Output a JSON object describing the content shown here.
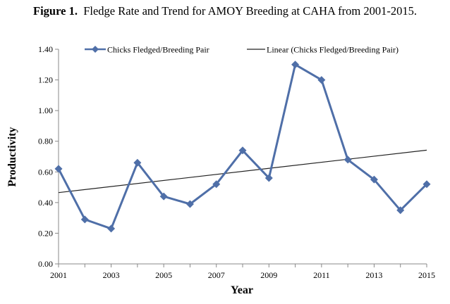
{
  "figure": {
    "label": "Figure 1.",
    "caption": "Fledge Rate and Trend for AMOY Breeding at CAHA from 2001-2015."
  },
  "chart_data": {
    "type": "line",
    "x": [
      2001,
      2002,
      2003,
      2004,
      2005,
      2006,
      2007,
      2008,
      2009,
      2010,
      2011,
      2012,
      2013,
      2014,
      2015
    ],
    "series": [
      {
        "name": "Chicks Fledged/Breeding Pair",
        "values": [
          0.62,
          0.29,
          0.23,
          0.66,
          0.44,
          0.39,
          0.52,
          0.74,
          0.56,
          1.3,
          1.2,
          0.68,
          0.55,
          0.35,
          0.52
        ],
        "color": "#4f6fa8",
        "marker": "diamond"
      },
      {
        "name": "Linear (Chicks Fledged/Breeding Pair)",
        "trend": {
          "start": 0.465,
          "end": 0.742
        },
        "color": "#222222"
      }
    ],
    "xticks": [
      "2001",
      "2003",
      "2005",
      "2007",
      "2009",
      "2011",
      "2013",
      "2015"
    ],
    "yticks": [
      "0.00",
      "0.20",
      "0.40",
      "0.60",
      "0.80",
      "1.00",
      "1.20",
      "1.40"
    ],
    "xlabel": "Year",
    "ylabel": "Productivity",
    "xlim": [
      2001,
      2015
    ],
    "ylim": [
      0,
      1.4
    ],
    "grid": false,
    "legend": "top"
  }
}
